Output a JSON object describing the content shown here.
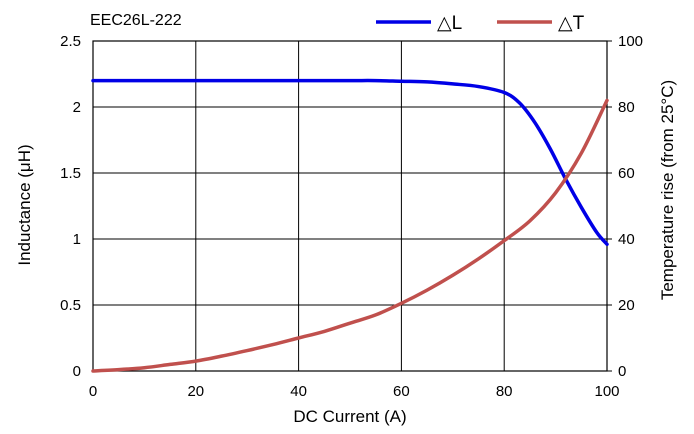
{
  "colors": {
    "inductance": "#0000e6",
    "temperature": "#c0504d",
    "grid": "#000000"
  },
  "chart_data": {
    "type": "line",
    "title": "EEC26L-222",
    "xlabel": "DC Current (A)",
    "ylabel": "Inductance (μH)",
    "y2label": "Temperature rise (from 25°C)",
    "xlim": [
      0,
      100
    ],
    "ylim": [
      0,
      2.5
    ],
    "y2lim": [
      0,
      100
    ],
    "x_ticks": [
      "0",
      "20",
      "40",
      "60",
      "80",
      "100"
    ],
    "y_ticks": [
      "0",
      "0.5",
      "1",
      "1.5",
      "2",
      "2.5"
    ],
    "y2_ticks": [
      "0",
      "20",
      "40",
      "60",
      "80",
      "100"
    ],
    "grid": true,
    "legend_position": "top-right",
    "series": [
      {
        "name": "△L",
        "axis": "left",
        "x": [
          0,
          10,
          20,
          30,
          40,
          50,
          55,
          60,
          65,
          70,
          75,
          80,
          83,
          86,
          89,
          92,
          95,
          98,
          100
        ],
        "y": [
          2.2,
          2.2,
          2.2,
          2.2,
          2.2,
          2.2,
          2.2,
          2.195,
          2.19,
          2.175,
          2.155,
          2.11,
          2.03,
          1.88,
          1.68,
          1.45,
          1.24,
          1.05,
          0.96
        ]
      },
      {
        "name": "△T",
        "axis": "right",
        "x": [
          0,
          5,
          10,
          15,
          20,
          25,
          30,
          35,
          40,
          45,
          50,
          55,
          60,
          65,
          70,
          75,
          80,
          85,
          90,
          95,
          100
        ],
        "y": [
          0,
          0.4,
          1,
          2,
          3,
          4.5,
          6.2,
          8,
          10,
          12,
          14.5,
          17,
          20.5,
          24.5,
          29,
          34,
          39.5,
          45.5,
          54,
          66,
          82
        ]
      }
    ]
  }
}
